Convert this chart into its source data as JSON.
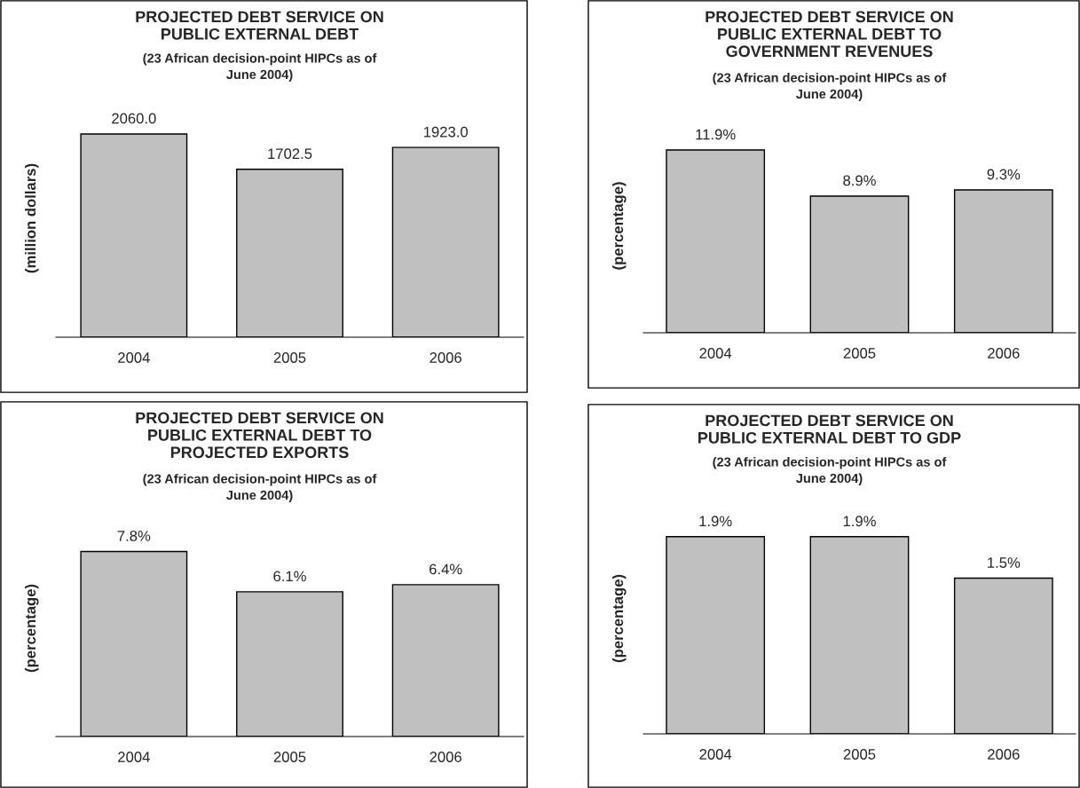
{
  "chart_data": [
    {
      "type": "bar",
      "title": "PROJECTED DEBT SERVICE ON\nPUBLIC EXTERNAL DEBT",
      "subtitle": "(23 African decision-point HIPCs as of\nJune 2004)",
      "ylabel": "(million dollars)",
      "categories": [
        "2004",
        "2005",
        "2006"
      ],
      "values": [
        2060.0,
        1702.5,
        1923.0
      ],
      "value_labels": [
        "2060.0",
        "1702.5",
        "1923.0"
      ],
      "color": "#c0c0c0"
    },
    {
      "type": "bar",
      "title": "PROJECTED DEBT SERVICE ON\nPUBLIC EXTERNAL DEBT TO\nGOVERNMENT REVENUES",
      "subtitle": "(23 African decision-point HIPCs as of\nJune 2004)",
      "ylabel": "(percentage)",
      "categories": [
        "2004",
        "2005",
        "2006"
      ],
      "values": [
        11.9,
        8.9,
        9.3
      ],
      "value_labels": [
        "11.9%",
        "8.9%",
        "9.3%"
      ],
      "color": "#c0c0c0"
    },
    {
      "type": "bar",
      "title": "PROJECTED DEBT SERVICE ON\nPUBLIC EXTERNAL DEBT TO\nPROJECTED EXPORTS",
      "subtitle": "(23 African decision-point HIPCs as of\nJune 2004)",
      "ylabel": "(percentage)",
      "categories": [
        "2004",
        "2005",
        "2006"
      ],
      "values": [
        7.8,
        6.1,
        6.4
      ],
      "value_labels": [
        "7.8%",
        "6.1%",
        "6.4%"
      ],
      "color": "#c0c0c0"
    },
    {
      "type": "bar",
      "title": "PROJECTED DEBT SERVICE ON\nPUBLIC EXTERNAL DEBT TO GDP",
      "subtitle": "(23 African decision-point HIPCs as of\nJune 2004)",
      "ylabel": "(percentage)",
      "categories": [
        "2004",
        "2005",
        "2006"
      ],
      "values": [
        1.9,
        1.9,
        1.5
      ],
      "value_labels": [
        "1.9%",
        "1.9%",
        "1.5%"
      ],
      "color": "#c0c0c0"
    }
  ]
}
